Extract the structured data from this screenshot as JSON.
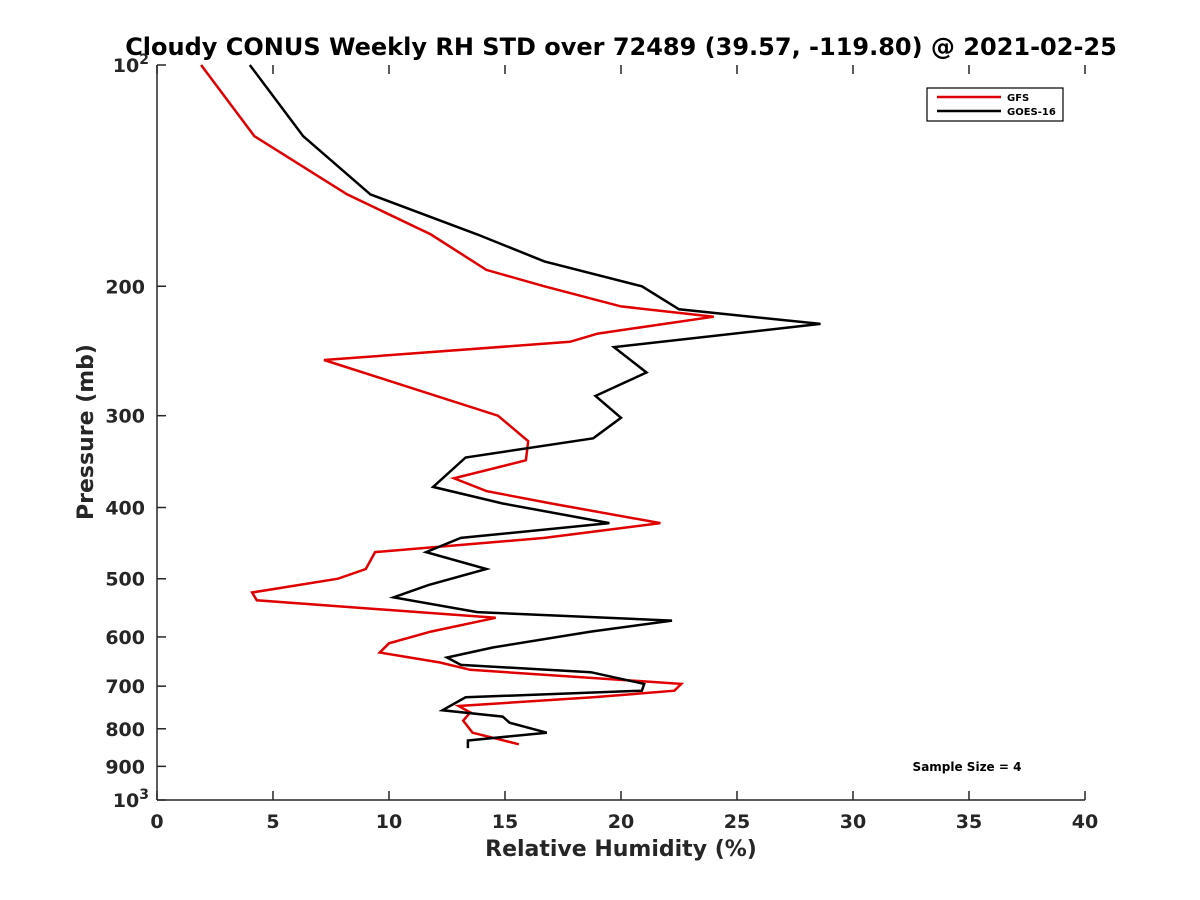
{
  "chart_data": {
    "type": "line",
    "title": "Cloudy CONUS Weekly RH STD over 72489 (39.57, -119.80) @ 2021-02-25",
    "xlabel": "Relative Humidity (%)",
    "ylabel": "Pressure (mb)",
    "xlim": [
      0,
      40
    ],
    "ylim": [
      100,
      1000
    ],
    "yscale": "log",
    "y_reversed": true,
    "x_ticks": [
      "0",
      "5",
      "10",
      "15",
      "20",
      "25",
      "30",
      "35",
      "40"
    ],
    "y_ticks": [
      {
        "value": 100,
        "label": "10",
        "exp": "2"
      },
      {
        "value": 200,
        "label": "200",
        "exp": ""
      },
      {
        "value": 300,
        "label": "300",
        "exp": ""
      },
      {
        "value": 400,
        "label": "400",
        "exp": ""
      },
      {
        "value": 500,
        "label": "500",
        "exp": ""
      },
      {
        "value": 600,
        "label": "600",
        "exp": ""
      },
      {
        "value": 700,
        "label": "700",
        "exp": ""
      },
      {
        "value": 800,
        "label": "800",
        "exp": ""
      },
      {
        "value": 900,
        "label": "900",
        "exp": ""
      },
      {
        "value": 1000,
        "label": "10",
        "exp": "3"
      }
    ],
    "legend_position": "top-right",
    "series": [
      {
        "name": "GFS",
        "color": "#e00000",
        "x": [
          1.9,
          4.2,
          8.2,
          11.8,
          14.2,
          16.7,
          20.0,
          24.0,
          19.0,
          17.8,
          7.2,
          14.7,
          16.0,
          15.9,
          12.8,
          14.2,
          17.0,
          21.7,
          16.7,
          9.4,
          9.0,
          7.8,
          4.1,
          4.3,
          14.6,
          11.8,
          10.0,
          9.6,
          12.2,
          13.5,
          22.6,
          22.3,
          18.8,
          13.0,
          13.5,
          13.2,
          13.6,
          15.6
        ],
        "y": [
          100,
          125,
          150,
          170,
          190,
          200,
          213,
          220,
          232,
          238,
          252,
          300,
          325,
          345,
          365,
          380,
          395,
          420,
          440,
          460,
          485,
          500,
          522,
          535,
          565,
          590,
          612,
          630,
          650,
          665,
          695,
          710,
          725,
          745,
          760,
          780,
          810,
          840
        ]
      },
      {
        "name": "GOES-16",
        "color": "#000000",
        "x": [
          4.0,
          6.3,
          9.2,
          13.8,
          16.7,
          20.9,
          22.5,
          28.6,
          19.7,
          21.1,
          18.9,
          20.0,
          18.8,
          13.3,
          11.9,
          14.9,
          19.5,
          13.1,
          11.6,
          14.2,
          11.7,
          10.2,
          13.8,
          22.2,
          18.7,
          14.5,
          12.5,
          13.1,
          18.7,
          21.0,
          20.9,
          13.3,
          12.3,
          14.9,
          15.2,
          16.8,
          13.4,
          13.4
        ],
        "y": [
          100,
          125,
          150,
          170,
          185,
          200,
          215,
          225,
          242,
          262,
          282,
          302,
          322,
          342,
          375,
          395,
          420,
          440,
          460,
          485,
          510,
          530,
          555,
          570,
          590,
          620,
          640,
          655,
          670,
          695,
          710,
          725,
          755,
          770,
          785,
          810,
          830,
          850
        ]
      }
    ],
    "annotation": "Sample Size = 4"
  }
}
